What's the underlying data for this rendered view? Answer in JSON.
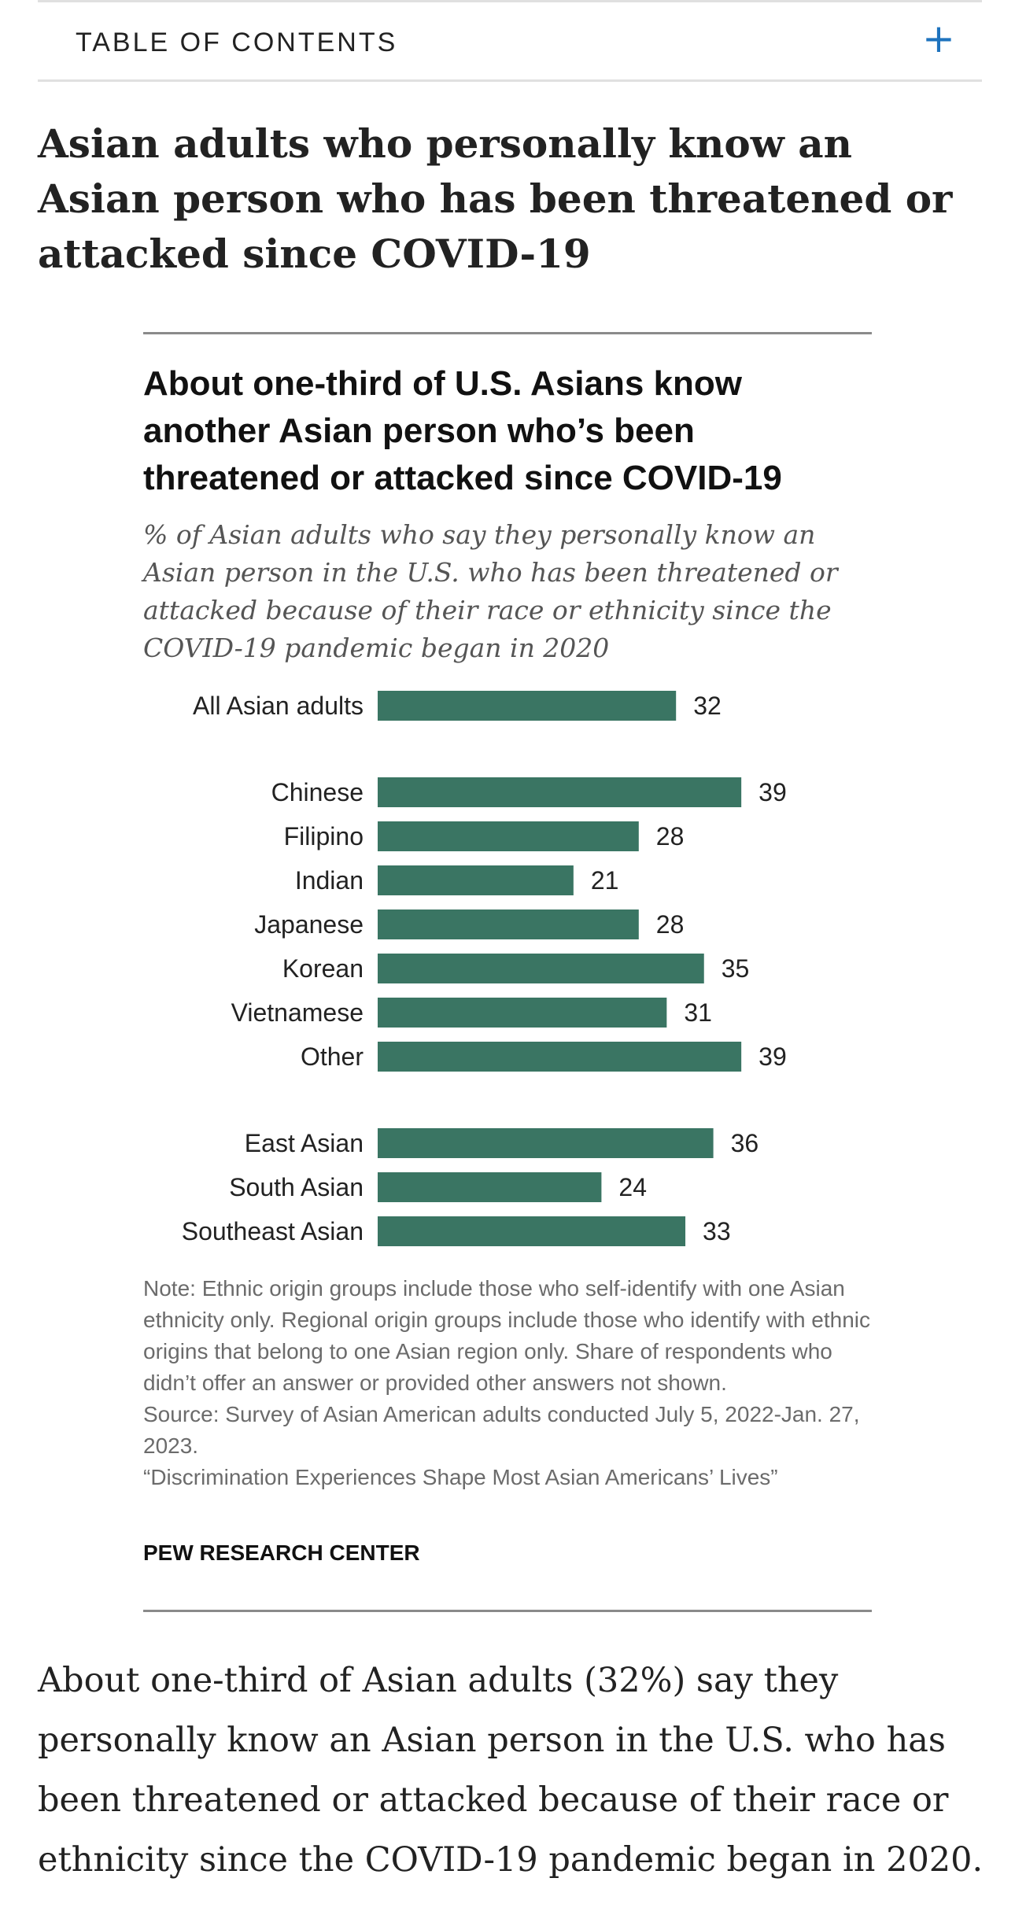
{
  "toc": {
    "label": "TABLE OF CONTENTS",
    "icon": "plus-icon",
    "icon_color": "#1e73be"
  },
  "section_title": "Asian adults who personally know an Asian person who has been threatened or attacked since COVID-19",
  "chart_data": {
    "type": "bar",
    "orientation": "horizontal",
    "title": "About one-third of U.S. Asians know another Asian person who’s been threatened or attacked since COVID-19",
    "subtitle": "% of Asian adults who say they personally know an Asian person in the U.S. who has been threatened or attacked because of their race or ethnicity since the COVID-19 pandemic began in 2020",
    "bar_color": "#3a7563",
    "groups": [
      {
        "categories": [
          "All Asian adults"
        ],
        "values": [
          32
        ]
      },
      {
        "categories": [
          "Chinese",
          "Filipino",
          "Indian",
          "Japanese",
          "Korean",
          "Vietnamese",
          "Other"
        ],
        "values": [
          39,
          28,
          21,
          28,
          35,
          31,
          39
        ]
      },
      {
        "categories": [
          "East Asian",
          "South Asian",
          "Southeast Asian"
        ],
        "values": [
          36,
          24,
          33
        ]
      }
    ],
    "xlim": [
      0,
      100
    ],
    "grid": false,
    "data_labels": true,
    "note": "Note: Ethnic origin groups include those who self-identify with one Asian ethnicity only. Regional origin groups include those who identify with ethnic origins that belong to one Asian region only. Share of respondents who didn’t offer an answer or provided other answers not shown.",
    "source": "Source: Survey of Asian American adults conducted July 5, 2022-Jan. 27, 2023.",
    "report": "“Discrimination Experiences Shape Most Asian Americans’ Lives”",
    "credit": "PEW RESEARCH CENTER"
  },
  "body_text": "About one-third of Asian adults (32%) say they personally know an Asian person in the U.S. who has been threatened or attacked because of their race or ethnicity since the COVID-19 pandemic began in 2020."
}
